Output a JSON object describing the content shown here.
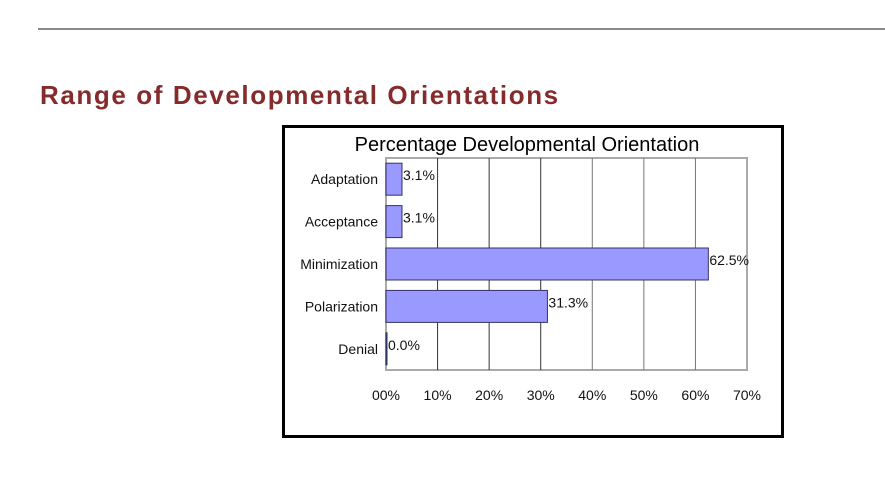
{
  "slide": {
    "heading": "Range of Developmental Orientations"
  },
  "colors": {
    "heading": "#862b2b",
    "bar_fill": "#9999ff",
    "bar_stroke": "#333366"
  },
  "chart_data": {
    "type": "bar",
    "orientation": "horizontal",
    "title": "Percentage Developmental Orientation",
    "categories": [
      "Adaptation",
      "Acceptance",
      "Minimization",
      "Polarization",
      "Denial"
    ],
    "values": [
      3.1,
      3.1,
      62.5,
      31.3,
      0.0
    ],
    "data_labels": [
      "3.1%",
      "3.1%",
      "62.5%",
      "31.3%",
      "0.0%"
    ],
    "xlim": [
      0,
      70
    ],
    "x_ticks": [
      0,
      10,
      20,
      30,
      40,
      50,
      60,
      70
    ],
    "x_tick_labels": [
      "00%",
      "10%",
      "20%",
      "30%",
      "40%",
      "50%",
      "60%",
      "70%"
    ],
    "xlabel": "",
    "ylabel": "",
    "grid": "vertical",
    "legend": "none"
  }
}
